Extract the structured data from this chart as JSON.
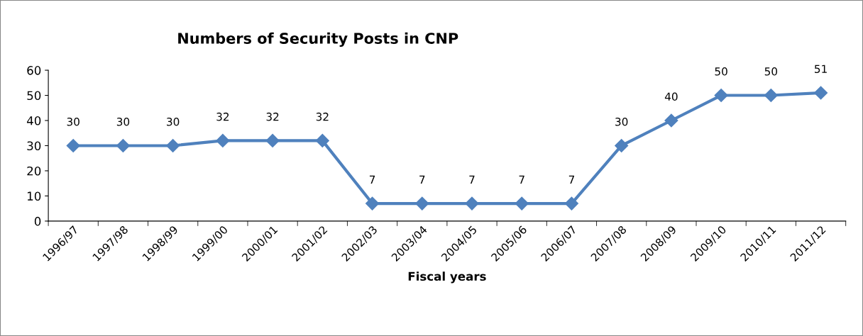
{
  "chart_data": {
    "type": "line",
    "title": "Numbers of Security Posts in CNP",
    "xlabel": "Fiscal years",
    "categories": [
      "1996/97",
      "1997/98",
      "1998/99",
      "1999/00",
      "2000/01",
      "2001/02",
      "2002/03",
      "2003/04",
      "2004/05",
      "2005/06",
      "2006/07",
      "2007/08",
      "2008/09",
      "2009/10",
      "2010/11",
      "2011/12"
    ],
    "series": [
      {
        "color": "#4f81bd",
        "values": [
          30,
          30,
          30,
          32,
          32,
          32,
          7,
          7,
          7,
          7,
          7,
          30,
          40,
          50,
          50,
          51
        ]
      }
    ],
    "ylim": [
      0,
      60
    ],
    "yticks": [
      0,
      10,
      20,
      30,
      40,
      50,
      60
    ],
    "grid": false,
    "legend": false,
    "marker": "diamond",
    "line_style": "solid",
    "data_labels": true
  }
}
